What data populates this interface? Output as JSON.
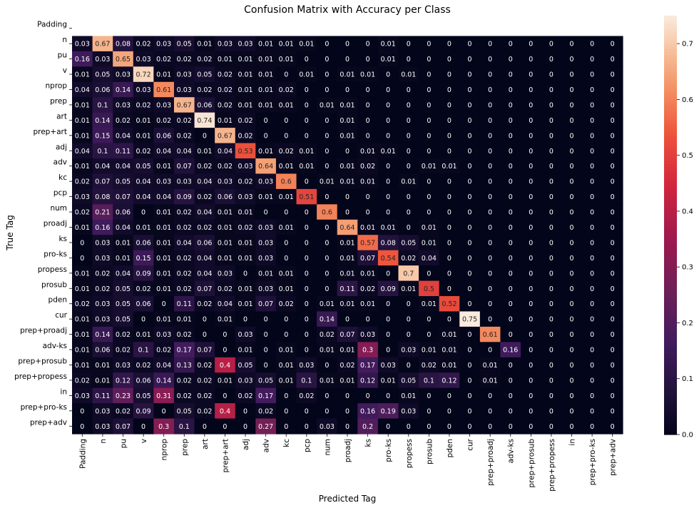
{
  "chart_data": {
    "type": "heatmap",
    "title": "Confusion Matrix with Accuracy per Class",
    "xlabel": "Predicted Tag",
    "ylabel": "True Tag",
    "row_labels": [
      "Padding",
      "n",
      "pu",
      "v",
      "nprop",
      "prep",
      "art",
      "prep+art",
      "adj",
      "adv",
      "kc",
      "pcp",
      "num",
      "proadj",
      "ks",
      "pro-ks",
      "propess",
      "prosub",
      "pden",
      "cur",
      "prep+proadj",
      "adv-ks",
      "prep+prosub",
      "prep+propess",
      "in",
      "prep+pro-ks",
      "prep+adv"
    ],
    "col_labels": [
      "Padding",
      "n",
      "pu",
      "v",
      "nprop",
      "prep",
      "art",
      "prep+art",
      "adj",
      "adv",
      "kc",
      "pcp",
      "num",
      "proadj",
      "ks",
      "pro-ks",
      "propess",
      "prosub",
      "pden",
      "cur",
      "prep+proadj",
      "adv-ks",
      "prep+prosub",
      "prep+propess",
      "in",
      "prep+pro-ks",
      "prep+adv"
    ],
    "rows": [
      [
        null,
        null,
        null,
        null,
        null,
        null,
        null,
        null,
        null,
        null,
        null,
        null,
        null,
        null,
        null,
        null,
        null,
        null,
        null,
        null,
        null,
        null,
        null,
        null,
        null,
        null,
        null
      ],
      [
        "0.03",
        "0.67",
        "0.08",
        "0.02",
        "0.03",
        "0.05",
        "0.01",
        "0.03",
        "0.03",
        "0.01",
        "0.01",
        "0.01",
        "0",
        "0",
        "0",
        "0.01",
        "0",
        "0",
        "0",
        "0",
        "0",
        "0",
        "0",
        "0",
        "0",
        "0",
        "0"
      ],
      [
        "0.16",
        "0.03",
        "0.65",
        "0.03",
        "0.02",
        "0.02",
        "0.02",
        "0.01",
        "0.01",
        "0.01",
        "0.01",
        "0",
        "0",
        "0",
        "0",
        "0.01",
        "0",
        "0",
        "0",
        "0",
        "0",
        "0",
        "0",
        "0",
        "0",
        "0",
        "0"
      ],
      [
        "0.01",
        "0.05",
        "0.03",
        "0.72",
        "0.01",
        "0.03",
        "0.05",
        "0.02",
        "0.01",
        "0.01",
        "0",
        "0.01",
        "0",
        "0.01",
        "0.01",
        "0",
        "0.01",
        "0",
        "0",
        "0",
        "0",
        "0",
        "0",
        "0",
        "0",
        "0",
        "0"
      ],
      [
        "0.04",
        "0.06",
        "0.14",
        "0.03",
        "0.61",
        "0.03",
        "0.02",
        "0.02",
        "0.01",
        "0.01",
        "0.02",
        "0",
        "0",
        "0",
        "0",
        "0",
        "0",
        "0",
        "0",
        "0",
        "0",
        "0",
        "0",
        "0",
        "0",
        "0",
        "0"
      ],
      [
        "0.01",
        "0.1",
        "0.03",
        "0.02",
        "0.03",
        "0.67",
        "0.06",
        "0.02",
        "0.01",
        "0.01",
        "0.01",
        "0",
        "0.01",
        "0.01",
        "0",
        "0",
        "0",
        "0",
        "0",
        "0",
        "0",
        "0",
        "0",
        "0",
        "0",
        "0",
        "0"
      ],
      [
        "0.01",
        "0.14",
        "0.02",
        "0.01",
        "0.02",
        "0.02",
        "0.74",
        "0.01",
        "0.02",
        "0",
        "0",
        "0",
        "0",
        "0.01",
        "0",
        "0",
        "0",
        "0",
        "0",
        "0",
        "0",
        "0",
        "0",
        "0",
        "0",
        "0",
        "0"
      ],
      [
        "0.01",
        "0.15",
        "0.04",
        "0.01",
        "0.06",
        "0.02",
        "0",
        "0.67",
        "0.02",
        "0",
        "0",
        "0",
        "0",
        "0.01",
        "0",
        "0",
        "0",
        "0",
        "0",
        "0",
        "0",
        "0",
        "0",
        "0",
        "0",
        "0",
        "0"
      ],
      [
        "0.04",
        "0.1",
        "0.11",
        "0.02",
        "0.04",
        "0.04",
        "0.01",
        "0.04",
        "0.53",
        "0.01",
        "0.02",
        "0.01",
        "0",
        "0",
        "0.01",
        "0.01",
        "0",
        "0",
        "0",
        "0",
        "0",
        "0",
        "0",
        "0",
        "0",
        "0",
        "0"
      ],
      [
        "0.01",
        "0.04",
        "0.04",
        "0.05",
        "0.01",
        "0.07",
        "0.02",
        "0.02",
        "0.03",
        "0.64",
        "0.01",
        "0.01",
        "0",
        "0.01",
        "0.02",
        "0",
        "0",
        "0.01",
        "0.01",
        "0",
        "0",
        "0",
        "0",
        "0",
        "0",
        "0",
        "0"
      ],
      [
        "0.02",
        "0.07",
        "0.05",
        "0.04",
        "0.03",
        "0.03",
        "0.04",
        "0.03",
        "0.02",
        "0.03",
        "0.6",
        "0",
        "0.01",
        "0.01",
        "0.01",
        "0",
        "0.01",
        "0",
        "0",
        "0",
        "0",
        "0",
        "0",
        "0",
        "0",
        "0",
        "0"
      ],
      [
        "0.03",
        "0.08",
        "0.07",
        "0.04",
        "0.04",
        "0.09",
        "0.02",
        "0.06",
        "0.03",
        "0.01",
        "0.01",
        "0.51",
        "0",
        "0",
        "0",
        "0",
        "0",
        "0",
        "0",
        "0",
        "0",
        "0",
        "0",
        "0",
        "0",
        "0",
        "0"
      ],
      [
        "0.02",
        "0.21",
        "0.06",
        "0",
        "0.01",
        "0.02",
        "0.04",
        "0.01",
        "0.01",
        "0",
        "0",
        "0",
        "0.6",
        "0",
        "0",
        "0",
        "0",
        "0",
        "0",
        "0",
        "0",
        "0",
        "0",
        "0",
        "0",
        "0",
        "0"
      ],
      [
        "0.01",
        "0.16",
        "0.04",
        "0.01",
        "0.01",
        "0.02",
        "0.02",
        "0.01",
        "0.02",
        "0.03",
        "0.01",
        "0",
        "0",
        "0.64",
        "0.01",
        "0.01",
        "0",
        "0.01",
        "0",
        "0",
        "0",
        "0",
        "0",
        "0",
        "0",
        "0",
        "0"
      ],
      [
        "0",
        "0.03",
        "0.01",
        "0.06",
        "0.01",
        "0.04",
        "0.06",
        "0.01",
        "0.01",
        "0.03",
        "0",
        "0",
        "0",
        "0.01",
        "0.57",
        "0.08",
        "0.05",
        "0.01",
        "0",
        "0",
        "0",
        "0",
        "0",
        "0",
        "0",
        "0",
        "0"
      ],
      [
        "0",
        "0.03",
        "0.01",
        "0.15",
        "0.01",
        "0.02",
        "0.04",
        "0.01",
        "0.01",
        "0.03",
        "0",
        "0",
        "0",
        "0.01",
        "0.07",
        "0.54",
        "0.02",
        "0.04",
        "0",
        "0",
        "0",
        "0",
        "0",
        "0",
        "0",
        "0",
        "0"
      ],
      [
        "0.01",
        "0.02",
        "0.04",
        "0.09",
        "0.01",
        "0.02",
        "0.04",
        "0.03",
        "0",
        "0.01",
        "0.01",
        "0",
        "0",
        "0.01",
        "0.01",
        "0",
        "0.7",
        "0",
        "0",
        "0",
        "0",
        "0",
        "0",
        "0",
        "0",
        "0",
        "0"
      ],
      [
        "0.01",
        "0.02",
        "0.05",
        "0.02",
        "0.01",
        "0.02",
        "0.07",
        "0.02",
        "0.01",
        "0.03",
        "0.01",
        "0",
        "0",
        "0.11",
        "0.02",
        "0.09",
        "0.01",
        "0.5",
        "0",
        "0",
        "0",
        "0",
        "0",
        "0",
        "0",
        "0",
        "0"
      ],
      [
        "0.02",
        "0.03",
        "0.05",
        "0.06",
        "0",
        "0.11",
        "0.02",
        "0.04",
        "0.01",
        "0.07",
        "0.02",
        "0",
        "0.01",
        "0.01",
        "0.01",
        "0",
        "0",
        "0.01",
        "0.52",
        "0",
        "0",
        "0",
        "0",
        "0",
        "0",
        "0",
        "0"
      ],
      [
        "0.01",
        "0.03",
        "0.05",
        "0",
        "0.01",
        "0.01",
        "0",
        "0.01",
        "0",
        "0",
        "0",
        "0",
        "0.14",
        "0",
        "0",
        "0",
        "0",
        "0",
        "0",
        "0.75",
        "0",
        "0",
        "0",
        "0",
        "0",
        "0",
        "0"
      ],
      [
        "0.01",
        "0.14",
        "0.02",
        "0.01",
        "0.03",
        "0.02",
        "0",
        "0",
        "0.03",
        "0",
        "0",
        "0",
        "0.02",
        "0.07",
        "0.03",
        "0",
        "0",
        "0",
        "0.01",
        "0",
        "0.61",
        "0",
        "0",
        "0",
        "0",
        "0",
        "0"
      ],
      [
        "0.01",
        "0.06",
        "0.02",
        "0.1",
        "0.02",
        "0.17",
        "0.07",
        "0",
        "0.01",
        "0",
        "0.01",
        "0",
        "0.01",
        "0.01",
        "0.3",
        "0",
        "0.03",
        "0.01",
        "0.01",
        "0",
        "0",
        "0.16",
        "0",
        "0",
        "0",
        "0",
        "0"
      ],
      [
        "0.01",
        "0.01",
        "0.03",
        "0.02",
        "0.04",
        "0.13",
        "0.02",
        "0.4",
        "0.05",
        "0",
        "0.01",
        "0.03",
        "0",
        "0.02",
        "0.17",
        "0.03",
        "0",
        "0.02",
        "0.01",
        "0",
        "0.01",
        "0",
        "0",
        "0",
        "0",
        "0",
        "0"
      ],
      [
        "0.02",
        "0.01",
        "0.12",
        "0.06",
        "0.14",
        "0.02",
        "0.02",
        "0.01",
        "0.03",
        "0.05",
        "0.01",
        "0.1",
        "0.01",
        "0.01",
        "0.12",
        "0.01",
        "0.05",
        "0.1",
        "0.12",
        "0",
        "0.01",
        "0",
        "0",
        "0",
        "0",
        "0",
        "0"
      ],
      [
        "0.03",
        "0.11",
        "0.23",
        "0.05",
        "0.31",
        "0.02",
        "0.02",
        "0",
        "0.02",
        "0.17",
        "0",
        "0.02",
        "0",
        "0",
        "0",
        "0",
        "0.01",
        "0",
        "0",
        "0",
        "0",
        "0",
        "0",
        "0",
        "0",
        "0",
        "0"
      ],
      [
        "0",
        "0.03",
        "0.02",
        "0.09",
        "0",
        "0.05",
        "0.02",
        "0.4",
        "0",
        "0.02",
        "0",
        "0",
        "0",
        "0",
        "0.16",
        "0.19",
        "0.03",
        "0",
        "0",
        "0",
        "0",
        "0",
        "0",
        "0",
        "0",
        "0",
        "0"
      ],
      [
        "0",
        "0.03",
        "0.07",
        "0",
        "0.3",
        "0.1",
        "0",
        "0",
        "0",
        "0.27",
        "0",
        "0",
        "0.03",
        "0",
        "0.2",
        "0",
        "0",
        "0",
        "0",
        "0",
        "0",
        "0",
        "0",
        "0",
        "0",
        "0",
        "0"
      ]
    ],
    "colorbar": {
      "range": [
        0,
        0.75
      ],
      "ticks": [
        "0.0",
        "0.1",
        "0.2",
        "0.3",
        "0.4",
        "0.5",
        "0.6",
        "0.7"
      ]
    },
    "grid": false
  }
}
